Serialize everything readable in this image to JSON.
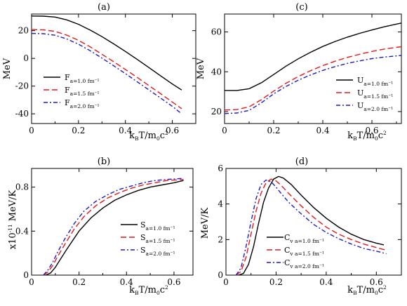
{
  "colors": {
    "s1": "#000000",
    "s2": "#e8171b",
    "s3": "#1a1acc"
  },
  "chart_data": [
    {
      "type": "line",
      "title": "(a)",
      "xlabel": "k_B T/m_0 c^2",
      "xlabel_parts": {
        "k": "k",
        "B": "B",
        "T": "T/m",
        "zero": "0",
        "c": "c",
        "two": "2"
      },
      "ylabel": "MeV",
      "xlim": [
        0,
        0.7
      ],
      "ylim": [
        -47,
        32
      ],
      "xticks": [
        0,
        0.2,
        0.4,
        0.6
      ],
      "xticklabels": [
        "0",
        "0.2",
        "0.4",
        "0.6"
      ],
      "yticks": [
        -40,
        -20,
        0,
        20
      ],
      "yticklabels": [
        "-40",
        "-20",
        "0",
        "20"
      ],
      "legend": {
        "position": "lower-left",
        "symbol": "F",
        "entries": [
          "a=1.0 fm⁻¹",
          "a=1.5 fm⁻¹",
          "a=2.0 fm⁻¹"
        ]
      },
      "series": [
        {
          "name": "F a=1.0 fm⁻¹",
          "x": [
            0,
            0.05,
            0.1,
            0.15,
            0.2,
            0.25,
            0.3,
            0.35,
            0.4,
            0.45,
            0.5,
            0.55,
            0.6,
            0.64
          ],
          "y": [
            30.6,
            30.5,
            29.8,
            27.8,
            24.6,
            20.4,
            15.7,
            10.5,
            5.0,
            -0.7,
            -6.6,
            -12.6,
            -18.5,
            -22.8
          ]
        },
        {
          "name": "F a=1.5 fm⁻¹",
          "x": [
            0,
            0.05,
            0.1,
            0.15,
            0.2,
            0.25,
            0.3,
            0.35,
            0.4,
            0.45,
            0.5,
            0.55,
            0.6,
            0.64
          ],
          "y": [
            20.8,
            20.6,
            19.5,
            16.8,
            13.0,
            8.3,
            3.0,
            -2.4,
            -8.0,
            -13.7,
            -19.6,
            -25.5,
            -31.5,
            -36.3
          ]
        },
        {
          "name": "F a=2.0 fm⁻¹",
          "x": [
            0,
            0.05,
            0.1,
            0.15,
            0.2,
            0.25,
            0.3,
            0.35,
            0.4,
            0.45,
            0.5,
            0.55,
            0.6,
            0.64
          ],
          "y": [
            18.0,
            17.8,
            16.7,
            14.0,
            10.2,
            5.5,
            0.2,
            -5.3,
            -11.0,
            -16.8,
            -22.7,
            -28.6,
            -34.6,
            -40.0
          ]
        }
      ]
    },
    {
      "type": "line",
      "title": "(c)",
      "xlabel": "k_B T/m_0 c^2",
      "xlabel_parts": {
        "k": "k",
        "B": "B",
        "T": "T/m",
        "zero": "0",
        "c": "c",
        "two": "2"
      },
      "ylabel": "MeV",
      "xlim": [
        0,
        0.72
      ],
      "ylim": [
        14,
        69
      ],
      "xticks": [
        0,
        0.2,
        0.4,
        0.6
      ],
      "xticklabels": [
        "0",
        "0.2",
        "0.4",
        "0.6"
      ],
      "yticks": [
        20,
        40,
        60
      ],
      "yticklabels": [
        "20",
        "40",
        "60"
      ],
      "legend": {
        "position": "lower-right",
        "symbol": "U",
        "entries": [
          "a=1.0 fm⁻¹",
          "a=1.5 fm⁻¹",
          "a=2.0 fm⁻¹"
        ]
      },
      "series": [
        {
          "name": "U a=1.0 fm⁻¹",
          "x": [
            0,
            0.05,
            0.1,
            0.15,
            0.2,
            0.25,
            0.3,
            0.35,
            0.4,
            0.45,
            0.5,
            0.55,
            0.6,
            0.65,
            0.72
          ],
          "y": [
            30.6,
            30.6,
            31.5,
            34.5,
            38.6,
            42.8,
            46.5,
            49.8,
            52.7,
            55.2,
            57.4,
            59.3,
            61.0,
            62.6,
            64.5
          ]
        },
        {
          "name": "U a=1.5 fm⁻¹",
          "x": [
            0,
            0.05,
            0.1,
            0.15,
            0.2,
            0.25,
            0.3,
            0.35,
            0.4,
            0.45,
            0.5,
            0.55,
            0.6,
            0.65,
            0.72
          ],
          "y": [
            20.8,
            21.0,
            22.4,
            26.0,
            30.3,
            34.2,
            37.6,
            40.5,
            43.1,
            45.3,
            47.2,
            48.8,
            50.2,
            51.4,
            52.6
          ]
        },
        {
          "name": "U a=2.0 fm⁻¹",
          "x": [
            0,
            0.05,
            0.1,
            0.15,
            0.2,
            0.25,
            0.3,
            0.35,
            0.4,
            0.45,
            0.5,
            0.55,
            0.6,
            0.65,
            0.72
          ],
          "y": [
            19.0,
            19.3,
            20.6,
            24.4,
            28.9,
            32.6,
            35.8,
            38.4,
            40.7,
            42.6,
            44.2,
            45.5,
            46.6,
            47.4,
            48.2
          ]
        }
      ]
    },
    {
      "type": "line",
      "title": "(b)",
      "xlabel": "k_B T/m_0 c^2",
      "xlabel_parts": {
        "k": "k",
        "B": "B",
        "T": "T/m",
        "zero": "0",
        "c": "c",
        "two": "2"
      },
      "ylabel": "x10^-11 MeV/K",
      "ylabel_parts": {
        "x10": "x10",
        "exp": "-11",
        "unit": "MeV/K"
      },
      "xlim": [
        0,
        0.68
      ],
      "ylim": [
        0,
        0.97
      ],
      "xticks": [
        0,
        0.2,
        0.4,
        0.6
      ],
      "xticklabels": [
        "0",
        "0.2",
        "0.4",
        "0.6"
      ],
      "yticks": [
        0,
        0.4,
        0.8
      ],
      "yticklabels": [
        "0",
        "0.4",
        "0.8"
      ],
      "legend": {
        "position": "lower-right",
        "symbol": "S",
        "entries": [
          "a=1.0 fm⁻¹",
          "a=1.5 fm⁻¹",
          "a=2.0 fm⁻¹"
        ]
      },
      "series": [
        {
          "name": "S a=1.0 fm⁻¹",
          "x": [
            0.06,
            0.08,
            0.1,
            0.12,
            0.15,
            0.2,
            0.25,
            0.3,
            0.35,
            0.4,
            0.45,
            0.5,
            0.55,
            0.6,
            0.64
          ],
          "y": [
            0.0,
            0.02,
            0.07,
            0.14,
            0.24,
            0.4,
            0.52,
            0.61,
            0.68,
            0.73,
            0.77,
            0.8,
            0.82,
            0.84,
            0.86
          ]
        },
        {
          "name": "S a=1.5 fm⁻¹",
          "x": [
            0.05,
            0.07,
            0.09,
            0.11,
            0.14,
            0.18,
            0.22,
            0.27,
            0.32,
            0.37,
            0.42,
            0.47,
            0.52,
            0.57,
            0.64
          ],
          "y": [
            0.0,
            0.03,
            0.09,
            0.17,
            0.28,
            0.42,
            0.53,
            0.63,
            0.7,
            0.75,
            0.79,
            0.82,
            0.84,
            0.86,
            0.87
          ]
        },
        {
          "name": "S a=2.0 fm⁻¹",
          "x": [
            0.05,
            0.07,
            0.09,
            0.11,
            0.14,
            0.18,
            0.22,
            0.27,
            0.32,
            0.37,
            0.42,
            0.47,
            0.52,
            0.57,
            0.64
          ],
          "y": [
            0.0,
            0.05,
            0.12,
            0.21,
            0.33,
            0.47,
            0.58,
            0.67,
            0.73,
            0.78,
            0.81,
            0.84,
            0.86,
            0.87,
            0.88
          ]
        }
      ]
    },
    {
      "type": "line",
      "title": "(d)",
      "xlabel": "k_B T/m_0 c^2",
      "xlabel_parts": {
        "k": "k",
        "B": "B",
        "T": "T/m",
        "zero": "0",
        "c": "c",
        "two": "2"
      },
      "ylabel": "MeV/K",
      "xlim": [
        0,
        0.7
      ],
      "ylim": [
        0,
        6
      ],
      "xticks": [
        0,
        0.2,
        0.4,
        0.6
      ],
      "xticklabels": [
        "0",
        "0.2",
        "0.4",
        "0.6"
      ],
      "yticks": [
        0,
        2,
        4,
        6
      ],
      "yticklabels": [
        "0",
        "2",
        "4",
        "6"
      ],
      "legend": {
        "position": "lower-right",
        "symbol": "C",
        "entries": [
          "v a=1.0 fm⁻¹",
          "v a=1.5 fm⁻¹",
          "v a=2.0 fm⁻¹"
        ]
      },
      "series": [
        {
          "name": "Cv a=1.0 fm⁻¹",
          "x": [
            0.05,
            0.07,
            0.09,
            0.11,
            0.13,
            0.15,
            0.17,
            0.19,
            0.21,
            0.23,
            0.26,
            0.3,
            0.35,
            0.4,
            0.45,
            0.5,
            0.55,
            0.6,
            0.63
          ],
          "y": [
            0.0,
            0.1,
            0.6,
            1.6,
            2.9,
            4.1,
            4.9,
            5.4,
            5.55,
            5.45,
            5.1,
            4.5,
            3.8,
            3.2,
            2.7,
            2.3,
            2.0,
            1.8,
            1.7
          ]
        },
        {
          "name": "Cv a=1.5 fm⁻¹",
          "x": [
            0.04,
            0.06,
            0.08,
            0.1,
            0.12,
            0.14,
            0.16,
            0.18,
            0.2,
            0.22,
            0.25,
            0.3,
            0.35,
            0.4,
            0.45,
            0.5,
            0.55,
            0.6,
            0.64
          ],
          "y": [
            0.0,
            0.2,
            1.0,
            2.3,
            3.6,
            4.6,
            5.2,
            5.4,
            5.3,
            5.05,
            4.6,
            3.9,
            3.25,
            2.7,
            2.3,
            2.0,
            1.75,
            1.55,
            1.4
          ]
        },
        {
          "name": "Cv a=2.0 fm⁻¹",
          "x": [
            0.04,
            0.06,
            0.08,
            0.1,
            0.12,
            0.14,
            0.16,
            0.18,
            0.2,
            0.22,
            0.25,
            0.3,
            0.35,
            0.4,
            0.45,
            0.5,
            0.55,
            0.6,
            0.64
          ],
          "y": [
            0.0,
            0.4,
            1.6,
            3.0,
            4.3,
            5.1,
            5.35,
            5.25,
            4.95,
            4.6,
            4.1,
            3.45,
            2.85,
            2.4,
            2.05,
            1.75,
            1.5,
            1.35,
            1.2
          ]
        }
      ]
    }
  ]
}
